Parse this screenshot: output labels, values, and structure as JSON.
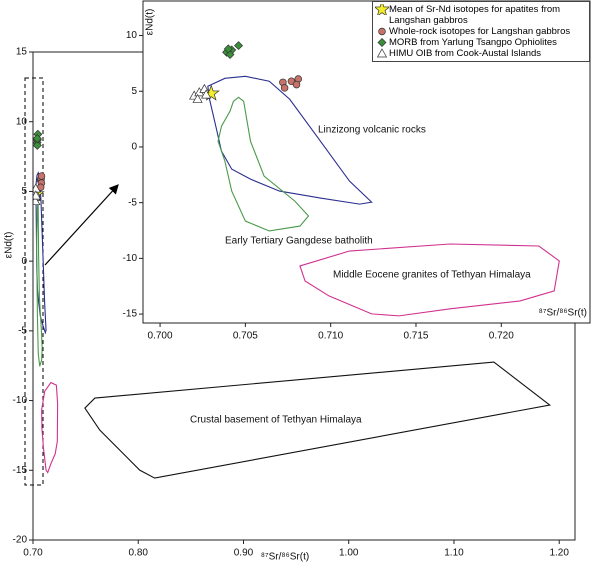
{
  "chart_data": [
    {
      "type": "scatter",
      "xlabel": "⁸⁷Sr/⁸⁶Sr(t)",
      "ylabel": "εNd(t)",
      "xlim": [
        0.7,
        1.215
      ],
      "ylim": [
        -20,
        15
      ],
      "xticks": [
        {
          "value": 0.7,
          "label": "0.70"
        },
        {
          "value": 0.8,
          "label": "0.80"
        },
        {
          "value": 0.9,
          "label": "0.90"
        },
        {
          "value": 1.0,
          "label": "1.00"
        },
        {
          "value": 1.1,
          "label": "1.10"
        },
        {
          "value": 1.2,
          "label": "1.20"
        }
      ],
      "yticks": [
        15,
        10,
        5,
        0,
        -5,
        -10,
        -15,
        -20
      ],
      "series": [
        {
          "name": "Mean of Sr-Nd isotopes for apatites from Langshan gabbros",
          "marker": "star",
          "color": "#f3ee2a",
          "x": [
            0.703
          ],
          "values": [
            4.8
          ]
        },
        {
          "name": "Whole-rock isotopes for Langshan gabbros",
          "marker": "circle",
          "color": "#c9726a",
          "x": [
            0.7072,
            0.7077,
            0.7081,
            0.708,
            0.7073
          ],
          "values": [
            5.8,
            5.9,
            6.1,
            5.6,
            5.3
          ]
        },
        {
          "name": "MORB from Yarlung Tsangpo Ophiolites",
          "marker": "diamond",
          "color": "#3b8f3b",
          "x": [
            0.7039,
            0.7042,
            0.7046,
            0.7041,
            0.704
          ],
          "values": [
            8.5,
            8.7,
            9.1,
            8.3,
            8.8
          ]
        },
        {
          "name": "HIMU OIB from Cook-Austal Islands",
          "marker": "triangle",
          "color": "#ffffff",
          "x": [
            0.702,
            0.7023,
            0.7026,
            0.7022,
            0.7027
          ],
          "values": [
            4.6,
            4.9,
            5.2,
            4.3,
            4.7
          ]
        }
      ],
      "regions": [
        {
          "color": "#2b2f8f",
          "x": [
            0.7028,
            0.7038,
            0.705,
            0.7064,
            0.7076,
            0.7094,
            0.7111,
            0.7124,
            0.7117,
            0.7094,
            0.707,
            0.7053,
            0.7042,
            0.7036,
            0.7032,
            0.7029
          ],
          "y": [
            5.45,
            6.16,
            6.34,
            5.9,
            4.28,
            0.52,
            -3.06,
            -4.95,
            -5.13,
            -4.59,
            -3.96,
            -2.89,
            -1.99,
            -0.38,
            2.31,
            4.28
          ]
        },
        {
          "color": "#4a9a4a",
          "x": [
            0.7043,
            0.7046,
            0.7049,
            0.7053,
            0.7061,
            0.7079,
            0.7087,
            0.7082,
            0.7064,
            0.705,
            0.7042,
            0.7038,
            0.7034,
            0.7036,
            0.7041
          ],
          "y": [
            4.1,
            4.46,
            4.1,
            0.52,
            -2.62,
            -4.86,
            -6.2,
            -7.1,
            -7.54,
            -6.65,
            -3.96,
            -1.27,
            0.52,
            1.86,
            3.21
          ]
        },
        {
          "color": "#d0318f",
          "x": [
            0.7082,
            0.7111,
            0.717,
            0.7222,
            0.7234,
            0.7231,
            0.7211,
            0.717,
            0.714,
            0.7124,
            0.7099,
            0.7085
          ],
          "y": [
            -10.68,
            -9.34,
            -8.71,
            -8.89,
            -10.23,
            -12.92,
            -13.82,
            -14.53,
            -15.16,
            -14.98,
            -13.37,
            -12.03
          ]
        },
        {
          "color": "#111111",
          "label": "Crustal basement of Tethyan Himalaya",
          "x": [
            0.7588,
            1.1379,
            1.191,
            0.8156,
            0.8014,
            0.7635,
            0.7493
          ],
          "y": [
            -9.82,
            -7.24,
            -10.32,
            -15.56,
            -14.99,
            -12.12,
            -10.54
          ]
        }
      ]
    },
    {
      "type": "scatter",
      "xlabel": "⁸⁷Sr/⁸⁶Sr(t)",
      "ylabel": "εNd(t)",
      "legend": "upper right",
      "xlim": [
        0.699,
        0.7252
      ],
      "ylim": [
        -15.8,
        13.1
      ],
      "xticks": [
        {
          "value": 0.7,
          "label": "0.700"
        },
        {
          "value": 0.705,
          "label": "0.705"
        },
        {
          "value": 0.71,
          "label": "0.710"
        },
        {
          "value": 0.715,
          "label": "0.715"
        },
        {
          "value": 0.72,
          "label": "0.720"
        }
      ],
      "yticks": [
        10,
        5,
        0,
        -5,
        -10,
        -15
      ],
      "series": [
        {
          "name": "Mean of Sr-Nd isotopes for apatites from Langshan gabbros",
          "marker": "star",
          "color": "#f3ee2a",
          "x": [
            0.703
          ],
          "values": [
            4.8
          ]
        },
        {
          "name": "Whole-rock isotopes for Langshan gabbros",
          "marker": "circle",
          "color": "#c9726a",
          "x": [
            0.7072,
            0.7077,
            0.7081,
            0.708,
            0.7073
          ],
          "values": [
            5.8,
            5.9,
            6.1,
            5.6,
            5.3
          ]
        },
        {
          "name": "MORB from Yarlung Tsangpo Ophiolites",
          "marker": "diamond",
          "color": "#3b8f3b",
          "x": [
            0.7039,
            0.7042,
            0.7046,
            0.7041,
            0.704
          ],
          "values": [
            8.5,
            8.7,
            9.1,
            8.3,
            8.8
          ]
        },
        {
          "name": "HIMU OIB from Cook-Austal Islands",
          "marker": "triangle",
          "color": "#ffffff",
          "x": [
            0.702,
            0.7023,
            0.7026,
            0.7022,
            0.7027
          ],
          "values": [
            4.6,
            4.9,
            5.2,
            4.3,
            4.7
          ]
        }
      ],
      "regions": [
        {
          "color": "#2b2f8f",
          "label": "Linzizong volcanic rocks",
          "x": [
            0.7028,
            0.7038,
            0.705,
            0.7064,
            0.7076,
            0.7094,
            0.7111,
            0.7124,
            0.7117,
            0.7094,
            0.707,
            0.7053,
            0.7042,
            0.7036,
            0.7032,
            0.7029
          ],
          "y": [
            5.45,
            6.16,
            6.34,
            5.9,
            4.28,
            0.52,
            -3.06,
            -4.95,
            -5.13,
            -4.59,
            -3.96,
            -2.89,
            -1.99,
            -0.38,
            2.31,
            4.28
          ]
        },
        {
          "color": "#4a9a4a",
          "label": "Early Tertiary Gangdese batholith",
          "x": [
            0.7043,
            0.7046,
            0.7049,
            0.7053,
            0.7061,
            0.7079,
            0.7087,
            0.7082,
            0.7064,
            0.705,
            0.7042,
            0.7038,
            0.7034,
            0.7036,
            0.7041
          ],
          "y": [
            4.1,
            4.46,
            4.1,
            0.52,
            -2.62,
            -4.86,
            -6.2,
            -7.1,
            -7.54,
            -6.65,
            -3.96,
            -1.27,
            0.52,
            1.86,
            3.21
          ]
        },
        {
          "color": "#d0318f",
          "label": "Middle Eocene granites of Tethyan Himalaya",
          "x": [
            0.7082,
            0.7111,
            0.717,
            0.7222,
            0.7234,
            0.7231,
            0.7211,
            0.717,
            0.714,
            0.7124,
            0.7099,
            0.7085
          ],
          "y": [
            -10.68,
            -9.34,
            -8.71,
            -8.89,
            -10.23,
            -12.92,
            -13.82,
            -14.53,
            -15.16,
            -14.98,
            -13.37,
            -12.03
          ]
        }
      ]
    }
  ]
}
